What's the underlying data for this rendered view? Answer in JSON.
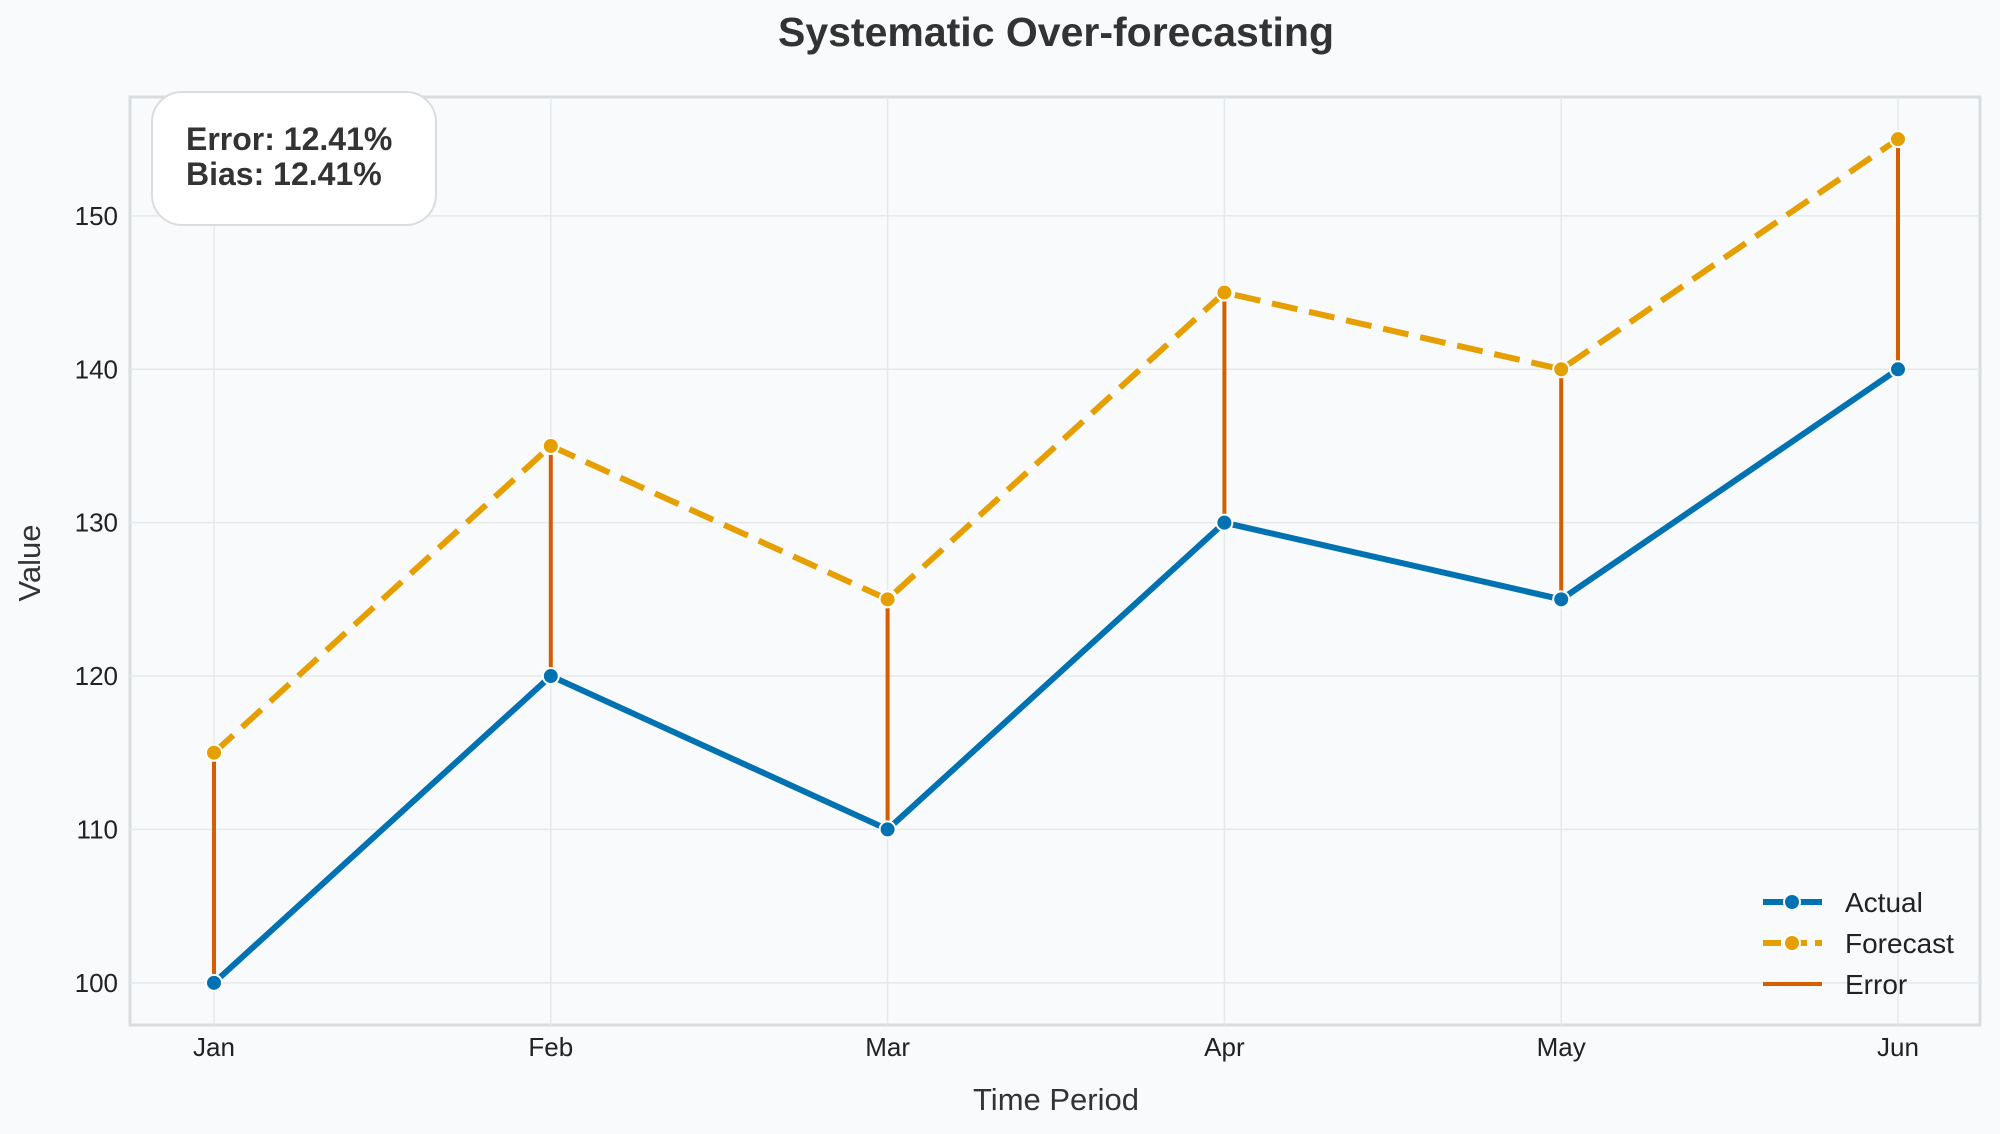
{
  "chart_data": {
    "type": "line",
    "title": "Systematic Over-forecasting",
    "xlabel": "Time Period",
    "ylabel": "Value",
    "categories": [
      "Jan",
      "Feb",
      "Mar",
      "Apr",
      "May",
      "Jun"
    ],
    "series": [
      {
        "name": "Actual",
        "values": [
          100,
          120,
          110,
          130,
          125,
          140
        ],
        "color": "#0072b2",
        "style": "solid"
      },
      {
        "name": "Forecast",
        "values": [
          115,
          135,
          125,
          145,
          140,
          155
        ],
        "color": "#e69f00",
        "style": "dashed"
      }
    ],
    "error_lines": {
      "name": "Error",
      "color": "#d55e00"
    },
    "yticks": [
      100,
      110,
      120,
      130,
      140,
      150
    ],
    "ylim": [
      97.25,
      157.75
    ],
    "grid": true,
    "legend_position": "bottom-right",
    "annotation": {
      "lines": [
        "Error: 12.41%",
        "Bias: 12.41%"
      ],
      "position": "top-left"
    }
  }
}
